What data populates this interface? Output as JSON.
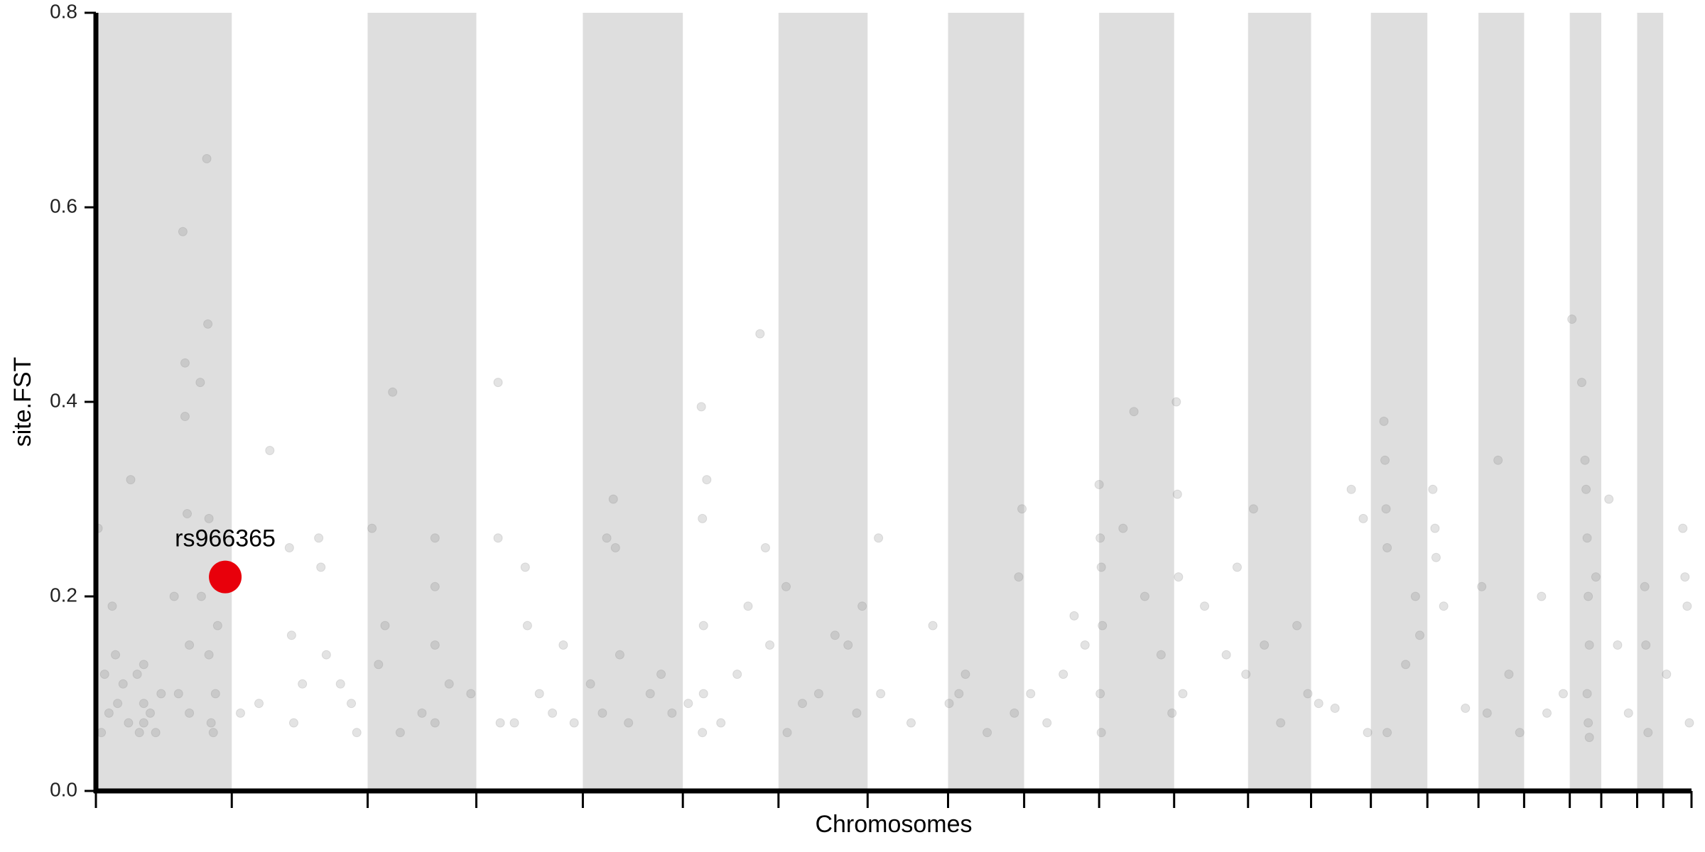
{
  "chart_data": {
    "type": "scatter",
    "x_label": "Chromosomes",
    "y_label": "site.FST",
    "xlim": [
      0,
      1468
    ],
    "ylim": [
      0,
      0.8
    ],
    "yticks": [
      {
        "value": 0,
        "label": "0.0"
      },
      0.2,
      0.4,
      0.6,
      0.8
    ],
    "xticks": [
      0,
      125,
      250,
      350,
      448,
      540,
      628,
      710,
      784,
      854,
      923,
      992,
      1060,
      1118,
      1173,
      1225,
      1272,
      1314,
      1356,
      1385,
      1418,
      1442,
      1468
    ],
    "band_color": "#dedede",
    "color": "#808080",
    "opacity": 0.22,
    "x": [
      2,
      5,
      8,
      12,
      15,
      18,
      20,
      25,
      30,
      32,
      38,
      40,
      44,
      44,
      44,
      50,
      55,
      60,
      72,
      76,
      80,
      82,
      82,
      84,
      86,
      86,
      96,
      97,
      102,
      103,
      104,
      104,
      106,
      108,
      110,
      112,
      133,
      150,
      160,
      178,
      180,
      182,
      190,
      205,
      207,
      212,
      225,
      235,
      240,
      254,
      260,
      266,
      273,
      280,
      300,
      312,
      312,
      312,
      312,
      325,
      345,
      370,
      370,
      372,
      385,
      395,
      397,
      408,
      420,
      430,
      440,
      455,
      466,
      470,
      476,
      478,
      482,
      490,
      510,
      520,
      530,
      545,
      557,
      558,
      559,
      559,
      558,
      562,
      575,
      590,
      600,
      611,
      616,
      620,
      635,
      636,
      650,
      665,
      680,
      692,
      700,
      705,
      720,
      722,
      750,
      770,
      785,
      794,
      800,
      820,
      845,
      849,
      852,
      860,
      875,
      890,
      900,
      910,
      923,
      924,
      925,
      926,
      924,
      925,
      945,
      955,
      965,
      980,
      990,
      994,
      995,
      996,
      1000,
      1020,
      1040,
      1050,
      1058,
      1065,
      1075,
      1090,
      1105,
      1115,
      1125,
      1140,
      1155,
      1166,
      1170,
      1185,
      1186,
      1187,
      1188,
      1188,
      1205,
      1214,
      1218,
      1230,
      1232,
      1233,
      1240,
      1260,
      1275,
      1280,
      1290,
      1300,
      1310,
      1330,
      1335,
      1350,
      1358,
      1367,
      1370,
      1371,
      1372,
      1373,
      1374,
      1372,
      1373,
      1374,
      1380,
      1392,
      1400,
      1410,
      1425,
      1426,
      1428,
      1445,
      1460,
      1462,
      1464,
      1466
    ],
    "values": [
      0.27,
      0.06,
      0.12,
      0.08,
      0.19,
      0.14,
      0.09,
      0.11,
      0.07,
      0.32,
      0.12,
      0.06,
      0.09,
      0.07,
      0.13,
      0.08,
      0.06,
      0.1,
      0.2,
      0.1,
      0.575,
      0.44,
      0.385,
      0.285,
      0.08,
      0.15,
      0.42,
      0.2,
      0.65,
      0.48,
      0.28,
      0.14,
      0.07,
      0.06,
      0.1,
      0.17,
      0.08,
      0.09,
      0.35,
      0.25,
      0.16,
      0.07,
      0.11,
      0.26,
      0.23,
      0.14,
      0.11,
      0.09,
      0.06,
      0.27,
      0.13,
      0.17,
      0.41,
      0.06,
      0.08,
      0.26,
      0.21,
      0.15,
      0.07,
      0.11,
      0.1,
      0.42,
      0.26,
      0.07,
      0.07,
      0.23,
      0.17,
      0.1,
      0.08,
      0.15,
      0.07,
      0.11,
      0.08,
      0.26,
      0.3,
      0.25,
      0.14,
      0.07,
      0.1,
      0.12,
      0.08,
      0.09,
      0.395,
      0.28,
      0.17,
      0.1,
      0.06,
      0.32,
      0.07,
      0.12,
      0.19,
      0.47,
      0.25,
      0.15,
      0.21,
      0.06,
      0.09,
      0.1,
      0.16,
      0.15,
      0.08,
      0.19,
      0.26,
      0.1,
      0.07,
      0.17,
      0.09,
      0.1,
      0.12,
      0.06,
      0.08,
      0.22,
      0.29,
      0.1,
      0.07,
      0.12,
      0.18,
      0.15,
      0.315,
      0.26,
      0.23,
      0.17,
      0.1,
      0.06,
      0.27,
      0.39,
      0.2,
      0.14,
      0.08,
      0.4,
      0.305,
      0.22,
      0.1,
      0.19,
      0.14,
      0.23,
      0.12,
      0.29,
      0.15,
      0.07,
      0.17,
      0.1,
      0.09,
      0.085,
      0.31,
      0.28,
      0.06,
      0.38,
      0.34,
      0.29,
      0.25,
      0.06,
      0.13,
      0.2,
      0.16,
      0.31,
      0.27,
      0.24,
      0.19,
      0.085,
      0.21,
      0.08,
      0.34,
      0.12,
      0.06,
      0.2,
      0.08,
      0.1,
      0.485,
      0.42,
      0.34,
      0.31,
      0.26,
      0.2,
      0.15,
      0.1,
      0.07,
      0.055,
      0.22,
      0.3,
      0.15,
      0.08,
      0.21,
      0.15,
      0.06,
      0.12,
      0.27,
      0.22,
      0.19,
      0.07
    ],
    "highlight": {
      "label": "rs966365",
      "x": 119,
      "value": 0.22,
      "color": "#e8000b"
    }
  }
}
